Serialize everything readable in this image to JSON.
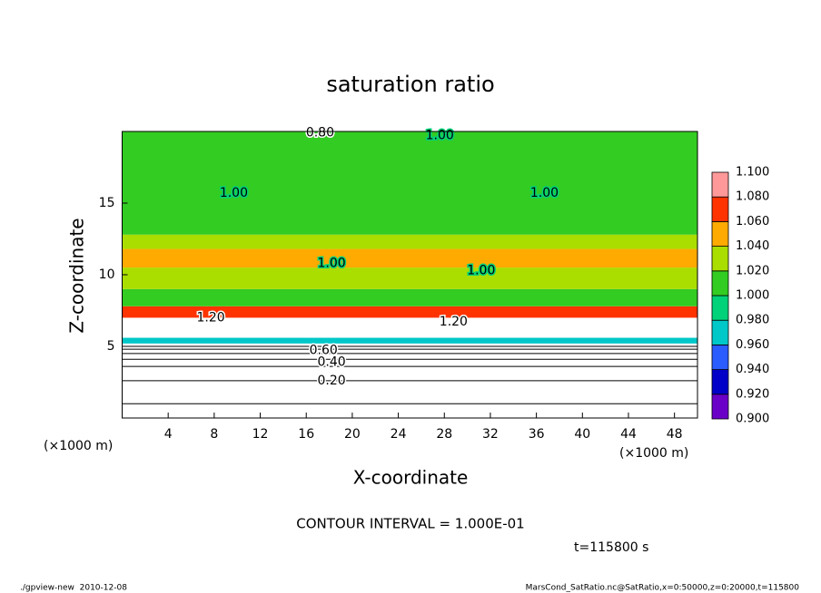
{
  "chart_data": {
    "type": "contour",
    "title": "saturation ratio",
    "x_label": "X-coordinate",
    "y_label": "Z-coordinate",
    "x_unit": "(×1000 m)",
    "y_unit": "(×1000 m)",
    "xlim": [
      0,
      50
    ],
    "xticks": [
      4,
      8,
      12,
      16,
      20,
      24,
      28,
      32,
      36,
      40,
      44,
      48
    ],
    "ylim": [
      0,
      20
    ],
    "yticks": [
      5,
      10,
      15
    ],
    "colorbar": {
      "levels": [
        {
          "value": 0.9,
          "label": "0.900"
        },
        {
          "value": 0.92,
          "label": "0.920"
        },
        {
          "value": 0.94,
          "label": "0.940"
        },
        {
          "value": 0.96,
          "label": "0.960"
        },
        {
          "value": 0.98,
          "label": "0.980"
        },
        {
          "value": 1.0,
          "label": "1.000"
        },
        {
          "value": 1.02,
          "label": "1.020"
        },
        {
          "value": 1.04,
          "label": "1.040"
        },
        {
          "value": 1.06,
          "label": "1.060"
        },
        {
          "value": 1.08,
          "label": "1.080"
        },
        {
          "value": 1.1,
          "label": "1.100"
        }
      ],
      "colors": [
        "#6a00c8",
        "#0000c8",
        "#2a5cff",
        "#00c8c8",
        "#00d27a",
        "#33cc22",
        "#aadd00",
        "#ffaa00",
        "#ff3300",
        "#ff9999"
      ]
    },
    "field": {
      "z_edges": [
        0,
        5.2,
        5.6,
        7.0,
        7.8,
        9.0,
        10.5,
        11.8,
        12.8,
        20
      ],
      "values": [
        0.5,
        0.97,
        1.2,
        1.07,
        1.01,
        1.03,
        1.05,
        1.03,
        1.01
      ]
    },
    "contour_z": [
      1.0,
      2.6,
      3.6,
      4.1,
      4.5,
      4.8,
      5.0
    ],
    "contour_labels": [
      {
        "label": "0.20",
        "value": 0.2,
        "x": 18.2,
        "z": 2.6
      },
      {
        "label": "0.40",
        "value": 0.4,
        "x": 18.2,
        "z": 3.9
      },
      {
        "label": "0.60",
        "value": 0.6,
        "x": 17.5,
        "z": 4.7
      },
      {
        "label": "0.80",
        "value": 0.8,
        "x": 17.2,
        "z": 19.9
      },
      {
        "label": "1.00",
        "value": 1.0,
        "x": 27.6,
        "z": 19.7
      },
      {
        "label": "1.00",
        "value": 1.0,
        "x": 36.7,
        "z": 15.7
      },
      {
        "label": "1.00",
        "value": 1.0,
        "x": 9.7,
        "z": 15.7
      },
      {
        "label": "1.00",
        "value": 1.0,
        "x": 18.2,
        "z": 10.8
      },
      {
        "label": "1.00",
        "value": 1.0,
        "x": 31.2,
        "z": 10.3
      },
      {
        "label": "1.20",
        "value": 1.2,
        "x": 28.8,
        "z": 6.7
      },
      {
        "label": "1.20",
        "value": 1.2,
        "x": 7.7,
        "z": 7.0
      }
    ],
    "contour_interval": "CONTOUR INTERVAL = 1.000E-01",
    "time_label": "t=115800 s",
    "footer_left": "./gpview-new  2010-12-08",
    "footer_right": "MarsCond_SatRatio.nc@SatRatio,x=0:50000,z=0:20000,t=115800"
  }
}
